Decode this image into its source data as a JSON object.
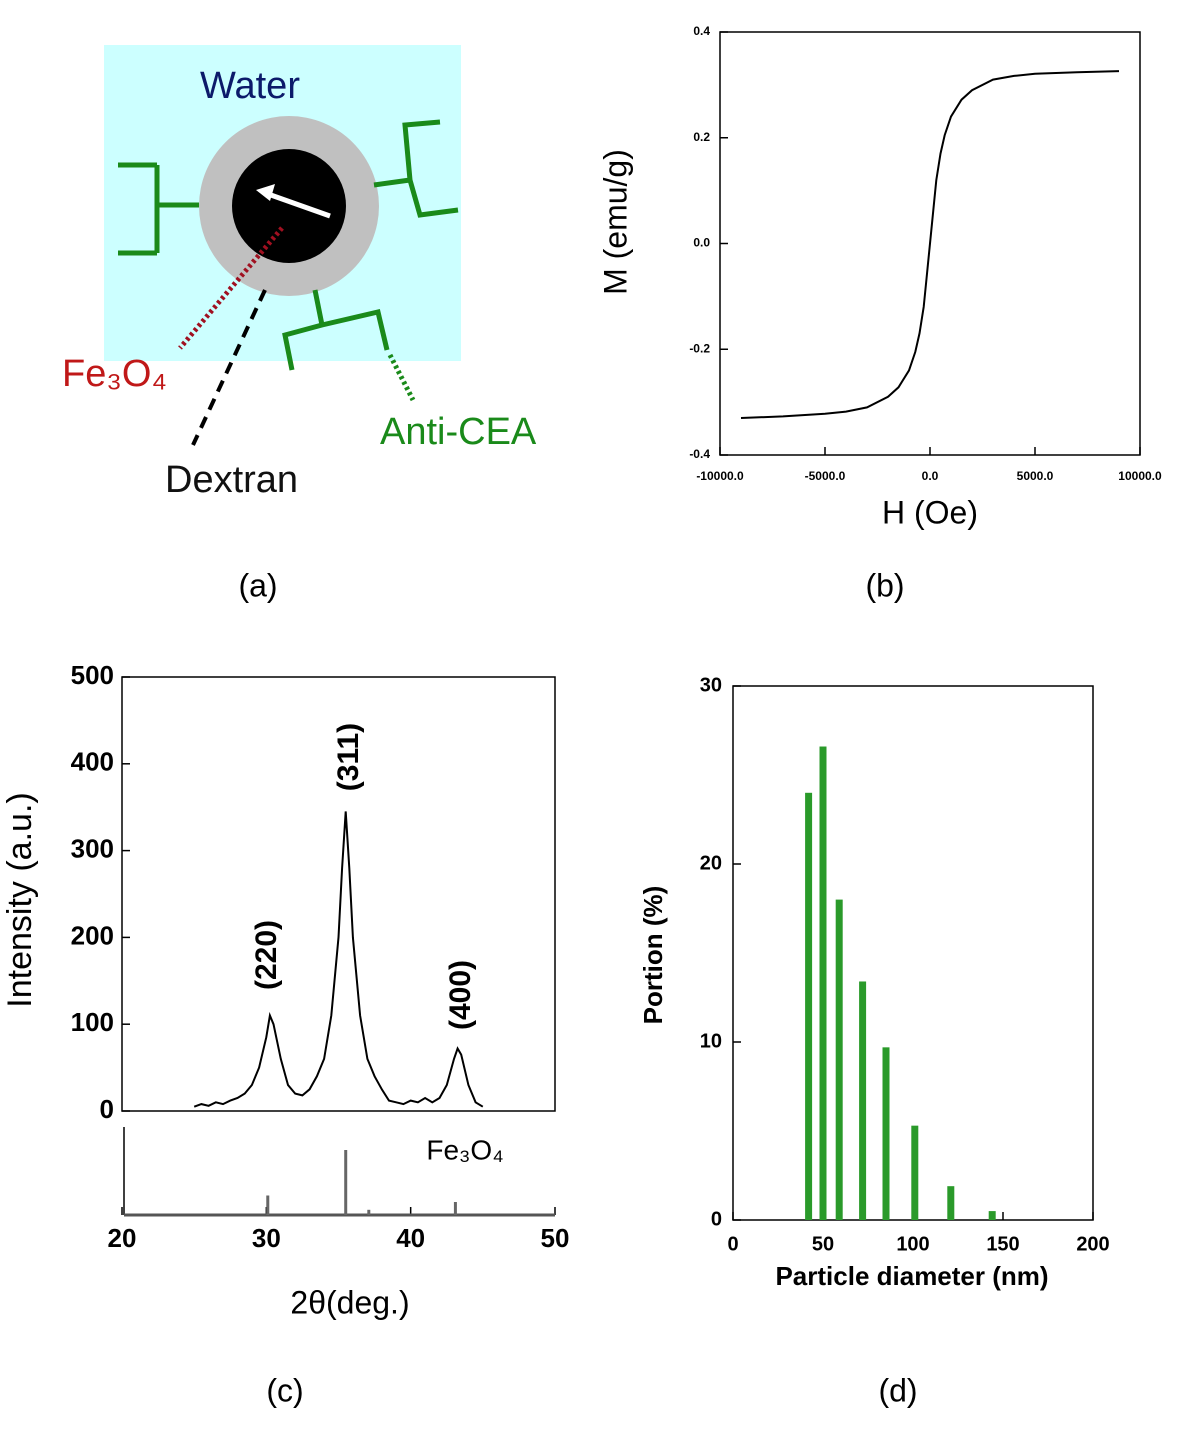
{
  "diagram": {
    "water": "Water",
    "core": "Fe₃O₄",
    "antibody": "Anti-CEA",
    "shell": "Dextran"
  },
  "captions": [
    "(a)",
    "(b)",
    "(c)",
    "(d)"
  ],
  "chart_data": [
    {
      "type": "line",
      "x_label": "H (Oe)",
      "y_label": "M (emu/g)",
      "series": [
        {
          "color": "#000000",
          "x": [
            -9000,
            -7000,
            -5000,
            -4000,
            -3000,
            -2000,
            -1500,
            -1000,
            -700,
            -500,
            -300,
            -200,
            -100,
            0,
            100,
            200,
            300,
            500,
            700,
            1000,
            1500,
            2000,
            3000,
            4000,
            5000,
            7000,
            9000
          ],
          "values": [
            -0.33,
            -0.327,
            -0.322,
            -0.318,
            -0.31,
            -0.29,
            -0.272,
            -0.24,
            -0.205,
            -0.17,
            -0.12,
            -0.08,
            -0.04,
            0.0,
            0.04,
            0.08,
            0.12,
            0.17,
            0.205,
            0.24,
            0.272,
            0.29,
            0.31,
            0.317,
            0.321,
            0.324,
            0.326
          ]
        }
      ],
      "xlim": [
        -10000,
        10000
      ],
      "xticks": [
        {
          "value": -10000,
          "label": "-10000.0"
        },
        {
          "value": -5000,
          "label": "-5000.0"
        },
        {
          "value": 0,
          "label": "0.0"
        },
        {
          "value": 5000,
          "label": "5000.0"
        },
        {
          "value": 10000,
          "label": "10000.0"
        }
      ],
      "ylim": [
        -0.4,
        0.4
      ],
      "yticks": [
        -0.4,
        -0.2,
        {
          "value": 0,
          "label": "0.0"
        },
        0.2,
        0.4
      ]
    },
    {
      "type": "line",
      "x_label": "2θ(deg.)",
      "y_label": "Intensity (a.u.)",
      "annotations": [
        "(220)",
        "(311)",
        "(400)"
      ],
      "series": [
        {
          "color": "#000000",
          "x": [
            25,
            25.5,
            26,
            26.5,
            27,
            27.5,
            28,
            28.5,
            29,
            29.5,
            30,
            30.25,
            30.5,
            31,
            31.5,
            32,
            32.5,
            33,
            33.5,
            34,
            34.5,
            35,
            35.25,
            35.5,
            35.75,
            36,
            36.5,
            37,
            37.5,
            38,
            38.5,
            39,
            39.5,
            40,
            40.5,
            41,
            41.5,
            42,
            42.5,
            43,
            43.25,
            43.5,
            44,
            44.5,
            45
          ],
          "values": [
            5,
            8,
            6,
            10,
            8,
            12,
            15,
            20,
            30,
            50,
            85,
            110,
            100,
            60,
            30,
            20,
            18,
            25,
            40,
            60,
            110,
            200,
            280,
            345,
            280,
            200,
            110,
            60,
            40,
            25,
            12,
            10,
            8,
            12,
            10,
            15,
            10,
            15,
            30,
            60,
            72,
            65,
            30,
            10,
            5
          ]
        }
      ],
      "reference": {
        "name": "Fe₃O₄",
        "x": [
          30.1,
          35.5,
          37.1,
          43.1
        ],
        "values": [
          30,
          100,
          8,
          20
        ]
      },
      "xlim": [
        20,
        50
      ],
      "xticks": [
        20,
        30,
        40,
        50
      ],
      "ylim": [
        0,
        500
      ],
      "yticks": [
        0,
        100,
        200,
        300,
        400,
        500
      ]
    },
    {
      "type": "bar",
      "x_label": "Particle diameter (nm)",
      "y_label": "Portion (%)",
      "color": "#2a9a2a",
      "x": [
        42,
        50,
        59,
        72,
        85,
        101,
        121,
        144
      ],
      "values": [
        24,
        26.6,
        18,
        13.4,
        9.7,
        5.3,
        1.9,
        0.5
      ],
      "xlim": [
        0,
        200
      ],
      "xticks": [
        0,
        50,
        100,
        150,
        200
      ],
      "ylim": [
        0,
        30
      ],
      "yticks": [
        0,
        10,
        20,
        30
      ]
    }
  ]
}
